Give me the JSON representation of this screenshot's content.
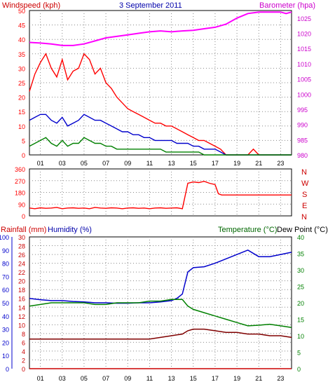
{
  "header": {
    "windspeed_label": "Windspeed (kph)",
    "date_label": "3 September 2011",
    "barometer_label": "Barometer (hpa)"
  },
  "middle_header": {
    "compass_labels": [
      "N",
      "W",
      "S",
      "E",
      "N"
    ]
  },
  "bottom_header": {
    "rainfall_label": "Rainfall (mm)",
    "humidity_label": "Humidity (%)",
    "temperature_label": "Temperature (°C)",
    "dewpoint_label": "Dew Point (°C)"
  },
  "colors": {
    "wind_gust": "#ff0000",
    "wind_avg": "#0000cc",
    "wind_low": "#008000",
    "barometer": "#ff00ff",
    "wind_dir": "#ff0000",
    "humidity": "#0000cc",
    "temperature": "#008000",
    "dewpoint": "#800000",
    "rainfall": "#cc0000",
    "title_red": "#cc0000",
    "date_blue": "#0000aa",
    "temp_green": "#006600",
    "grid": "#888888"
  },
  "chart_data": [
    {
      "type": "line",
      "title": "3 September 2011",
      "x_ticks": [
        "01",
        "03",
        "05",
        "07",
        "09",
        "11",
        "13",
        "15",
        "17",
        "19",
        "21",
        "23"
      ],
      "xlim": [
        0,
        24
      ],
      "y_left": {
        "label": "Windspeed (kph)",
        "ticks": [
          0,
          5,
          10,
          15,
          20,
          25,
          30,
          35,
          40,
          45,
          50
        ],
        "lim": [
          0,
          50
        ]
      },
      "y_right": {
        "label": "Barometer (hpa)",
        "ticks": [
          980,
          985,
          990,
          995,
          1000,
          1005,
          1010,
          1015,
          1020,
          1025
        ],
        "lim": [
          980,
          1027.5
        ]
      },
      "series": [
        {
          "role": "gust",
          "x": [
            0,
            0.5,
            1,
            1.5,
            2,
            2.5,
            3,
            3.5,
            4,
            4.5,
            5,
            5.5,
            6,
            6.5,
            7,
            7.5,
            8,
            8.5,
            9,
            9.5,
            10,
            10.5,
            11,
            11.5,
            12,
            12.5,
            13,
            13.5,
            14,
            14.5,
            15,
            15.5,
            16,
            16.5,
            17,
            17.5,
            18,
            19,
            20,
            20.5,
            21,
            22,
            23,
            24
          ],
          "y": [
            22,
            28,
            32,
            35,
            30,
            27,
            33,
            26,
            29,
            30,
            35,
            33,
            28,
            30,
            25,
            23,
            20,
            18,
            16,
            15,
            14,
            13,
            12,
            11,
            11,
            10,
            10,
            9,
            8,
            7,
            6,
            5,
            5,
            4,
            3,
            2,
            0,
            0,
            0,
            2,
            0,
            0,
            0,
            0
          ]
        },
        {
          "role": "average",
          "x": [
            0,
            0.5,
            1,
            1.5,
            2,
            2.5,
            3,
            3.5,
            4,
            4.5,
            5,
            5.5,
            6,
            6.5,
            7,
            7.5,
            8,
            8.5,
            9,
            9.5,
            10,
            10.5,
            11,
            11.5,
            12,
            12.5,
            13,
            13.5,
            14,
            14.5,
            15,
            15.5,
            16,
            16.5,
            17,
            17.5,
            18,
            24
          ],
          "y": [
            12,
            13,
            14,
            14,
            12,
            11,
            13,
            10,
            11,
            12,
            14,
            13,
            12,
            12,
            11,
            10,
            9,
            8,
            8,
            7,
            7,
            6,
            6,
            5,
            5,
            5,
            5,
            4,
            4,
            4,
            3,
            3,
            2,
            2,
            2,
            1,
            0,
            0
          ]
        },
        {
          "role": "low",
          "x": [
            0,
            0.5,
            1,
            1.5,
            2,
            2.5,
            3,
            3.5,
            4,
            4.5,
            5,
            5.5,
            6,
            6.5,
            7,
            7.5,
            8,
            8.5,
            9,
            9.5,
            10,
            10.5,
            11,
            11.5,
            12,
            12.5,
            13,
            13.5,
            14,
            14.5,
            15,
            15.5,
            16,
            16.5,
            17,
            17.5,
            18,
            24
          ],
          "y": [
            3,
            4,
            5,
            6,
            4,
            3,
            5,
            3,
            4,
            4,
            6,
            5,
            4,
            4,
            3,
            3,
            2,
            2,
            2,
            2,
            2,
            2,
            2,
            2,
            2,
            1,
            1,
            1,
            1,
            1,
            1,
            1,
            0,
            0,
            0,
            0,
            0,
            0
          ]
        },
        {
          "role": "barometer",
          "x": [
            0,
            1,
            2,
            3,
            4,
            5,
            6,
            7,
            8,
            9,
            10,
            11,
            12,
            13,
            14,
            15,
            16,
            17,
            18,
            19,
            20,
            21,
            22,
            23,
            23.5,
            24
          ],
          "y": [
            1017,
            1016.8,
            1016.5,
            1016,
            1016,
            1016.5,
            1017.5,
            1018.5,
            1019,
            1019.5,
            1020,
            1020.5,
            1020.8,
            1020.5,
            1020.8,
            1021,
            1021.5,
            1022,
            1023,
            1025,
            1026.5,
            1027,
            1027,
            1027,
            1026.5,
            1027
          ]
        }
      ]
    },
    {
      "type": "line",
      "x_ticks": [],
      "xlim": [
        0,
        24
      ],
      "y_left": {
        "ticks": [
          0,
          90,
          180,
          270,
          360
        ],
        "lim": [
          0,
          360
        ]
      },
      "y_right": {
        "ticks": [
          "N",
          "W",
          "S",
          "E",
          "N"
        ]
      },
      "series": [
        {
          "role": "direction",
          "x": [
            0,
            0.5,
            1,
            1.5,
            2,
            2.5,
            3,
            3.5,
            4,
            4.5,
            5,
            5.5,
            6,
            6.5,
            7,
            7.5,
            8,
            8.5,
            9,
            9.5,
            10,
            10.5,
            11,
            11.5,
            12,
            12.5,
            13,
            13.5,
            14,
            14.5,
            15,
            15.5,
            16,
            16.5,
            17,
            17.3,
            17.6,
            18,
            24
          ],
          "y": [
            60,
            55,
            62,
            58,
            60,
            65,
            55,
            60,
            62,
            58,
            60,
            55,
            65,
            60,
            58,
            62,
            60,
            55,
            60,
            62,
            58,
            60,
            55,
            60,
            62,
            58,
            60,
            62,
            55,
            250,
            260,
            255,
            265,
            250,
            240,
            170,
            160,
            160,
            160
          ]
        }
      ]
    },
    {
      "type": "line",
      "x_ticks": [
        "01",
        "03",
        "05",
        "07",
        "09",
        "11",
        "13",
        "15",
        "17",
        "19",
        "21",
        "23"
      ],
      "xlim": [
        0,
        24
      ],
      "y_left_outer": {
        "label": "Rainfall (mm)",
        "ticks": [
          0,
          10,
          20,
          30,
          40,
          50,
          60,
          70,
          80,
          90,
          100
        ],
        "lim": [
          0,
          100
        ]
      },
      "y_left_inner": {
        "label": "Humidity (%)",
        "ticks": [
          0,
          2,
          4,
          6,
          8,
          10,
          12,
          14,
          16,
          18,
          20,
          22,
          24,
          26,
          28,
          30
        ],
        "lim": [
          0,
          30
        ]
      },
      "y_right": {
        "label": "Temperature (°C)",
        "ticks": [
          0,
          5,
          10,
          15,
          20,
          25,
          30,
          35,
          40
        ],
        "lim": [
          0,
          40
        ]
      },
      "series": [
        {
          "role": "humidity",
          "axis": "inner",
          "x": [
            0,
            1,
            2,
            3,
            4,
            5,
            6,
            7,
            8,
            9,
            10,
            11,
            12,
            13,
            13.5,
            14,
            14.5,
            15,
            16,
            17,
            18,
            19,
            20,
            21,
            22,
            23,
            24
          ],
          "y": [
            16,
            15.7,
            15.5,
            15.5,
            15.3,
            15.2,
            15,
            15,
            14.9,
            14.9,
            15,
            15,
            15.2,
            15.5,
            16,
            17,
            22,
            23,
            23.2,
            24,
            25,
            26,
            27,
            25.5,
            25.5,
            26,
            26.5
          ]
        },
        {
          "role": "temperature",
          "axis": "right",
          "x": [
            0,
            1,
            2,
            3,
            4,
            5,
            6,
            7,
            8,
            9,
            10,
            11,
            12,
            13,
            14,
            14.5,
            15,
            16,
            17,
            18,
            19,
            20,
            21,
            22,
            23,
            24
          ],
          "y": [
            19,
            19.5,
            20,
            20,
            20,
            20,
            19.5,
            19.5,
            20,
            20,
            20,
            20.5,
            20.5,
            21,
            21,
            19,
            18,
            17,
            16,
            15,
            14,
            13,
            13.2,
            13.5,
            13,
            12.5
          ]
        },
        {
          "role": "dewpoint",
          "axis": "right",
          "x": [
            0,
            1,
            2,
            3,
            4,
            5,
            6,
            7,
            8,
            9,
            10,
            11,
            12,
            13,
            14,
            14.5,
            15,
            16,
            17,
            18,
            19,
            20,
            21,
            22,
            23,
            24
          ],
          "y": [
            9,
            9,
            9,
            9,
            9,
            9,
            9,
            9,
            9,
            9,
            9,
            9,
            9.5,
            10,
            10.5,
            11.5,
            12,
            12,
            11.5,
            11,
            11,
            10.5,
            10.5,
            10,
            10,
            9.5
          ]
        },
        {
          "role": "rainfall",
          "axis": "outer",
          "x": [
            0,
            24
          ],
          "y": [
            0,
            0
          ]
        }
      ]
    }
  ]
}
